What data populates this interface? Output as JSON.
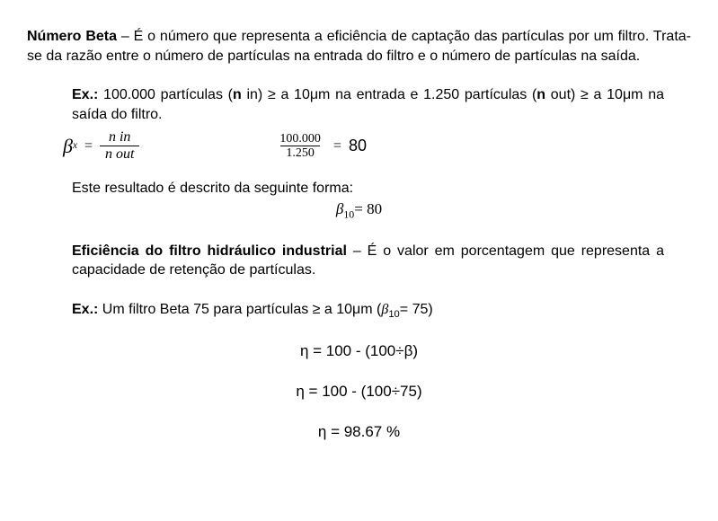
{
  "intro": {
    "title": "Número Beta",
    "dash": " – ",
    "text": "É o número que representa a eficiência de captação das partículas por um filtro. Trata-se da razão entre o número de partículas na entrada do filtro e o número de partículas na saída."
  },
  "ex1": {
    "label": "Ex.:",
    "part1": " 100.000 partículas (",
    "n_in_bold": "n",
    "n_in_text": " in) ≥ a 10μm na entrada e 1.250 partículas (",
    "n_out_bold": "n",
    "n_out_text": " out) ≥ a 10μm na saída do filtro."
  },
  "formula1": {
    "beta": "β",
    "sub_x": "x",
    "eq": " = ",
    "num1": "n in",
    "den1": "n out",
    "num2": "100.000",
    "den2": "1.250",
    "eq2": " = ",
    "result": "80"
  },
  "result_text": "Este resultado é descrito da seguinte forma:",
  "result_formula": {
    "beta": "β",
    "sub": "10",
    "eq": "= ",
    "val": "80"
  },
  "efficiency": {
    "title": "Eficiência do filtro hidráulico industrial",
    "dash": " – ",
    "text": "É o valor em porcentagem que representa a capacidade de retenção de partículas."
  },
  "ex2": {
    "label": "Ex.:",
    "text1": " Um filtro Beta 75 para partículas ≥ a 10μm (",
    "beta": "β",
    "sub": "10",
    "eq": "= ",
    "val": "75",
    "close": ")"
  },
  "formulas": {
    "f1": "ƞ = 100 - (100÷β)",
    "f2": "ƞ = 100 - (100÷75)",
    "f3": "ƞ = 98.67 %"
  },
  "colors": {
    "text": "#000000",
    "background": "#ffffff"
  }
}
